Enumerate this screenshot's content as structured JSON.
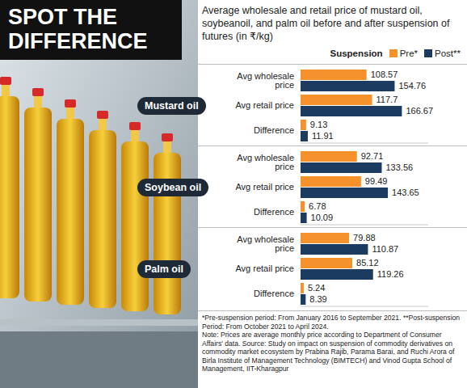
{
  "banner": "SPOT THE DIFFERENCE",
  "subtitle": "Average wholesale and retail price of mustard oil, soybeanoil, and palm oil before and after suspension of futures (in ₹/kg)",
  "legend_title": "Suspension",
  "footnotes": [
    "*Pre-suspension period: From January 2016 to September 2021. **Post-suspension Period: From October 2021 to April 2024.",
    "Note: Prices are average monthly price according to Department of Consumer Affairs' data. Source: Study on impact on suspension of commodity derivatives on commodity market ecosystem by Prabina Rajib, Parama Barai, and Ruchi Arora of Birla Institute of Management Technology (BIMTECH) and Vinod Gupta School of Management, IIT-Kharagpur"
  ],
  "chart_data": [
    {
      "type": "bar",
      "orientation": "horizontal",
      "title": "Mustard oil",
      "categories": [
        "Avg wholesale price",
        "Avg retail price",
        "Difference"
      ],
      "series": [
        {
          "name": "Pre*",
          "color": "#f5922b",
          "values": [
            108.57,
            117.7,
            9.13
          ]
        },
        {
          "name": "Post**",
          "color": "#1b3b60",
          "values": [
            154.76,
            166.67,
            11.91
          ]
        }
      ],
      "xlim": [
        0,
        210
      ],
      "xticks": [],
      "tick_labels": "y",
      "data_labels": true,
      "legend": "top-right"
    },
    {
      "type": "bar",
      "orientation": "horizontal",
      "title": "Soybean oil",
      "categories": [
        "Avg wholesale price",
        "Avg retail price",
        "Difference"
      ],
      "series": [
        {
          "name": "Pre*",
          "color": "#f5922b",
          "values": [
            92.71,
            99.49,
            6.78
          ]
        },
        {
          "name": "Post**",
          "color": "#1b3b60",
          "values": [
            133.56,
            143.65,
            10.09
          ]
        }
      ],
      "xlim": [
        0,
        210
      ],
      "xticks": [],
      "tick_labels": "y",
      "data_labels": true
    },
    {
      "type": "bar",
      "orientation": "horizontal",
      "title": "Palm oil",
      "categories": [
        "Avg wholesale price",
        "Avg retail price",
        "Difference"
      ],
      "series": [
        {
          "name": "Pre*",
          "color": "#f5922b",
          "values": [
            79.88,
            85.12,
            5.24
          ]
        },
        {
          "name": "Post**",
          "color": "#1b3b60",
          "values": [
            110.87,
            119.26,
            8.39
          ]
        }
      ],
      "xlim": [
        0,
        210
      ],
      "xticks": [],
      "tick_labels": "y",
      "data_labels": true
    }
  ]
}
